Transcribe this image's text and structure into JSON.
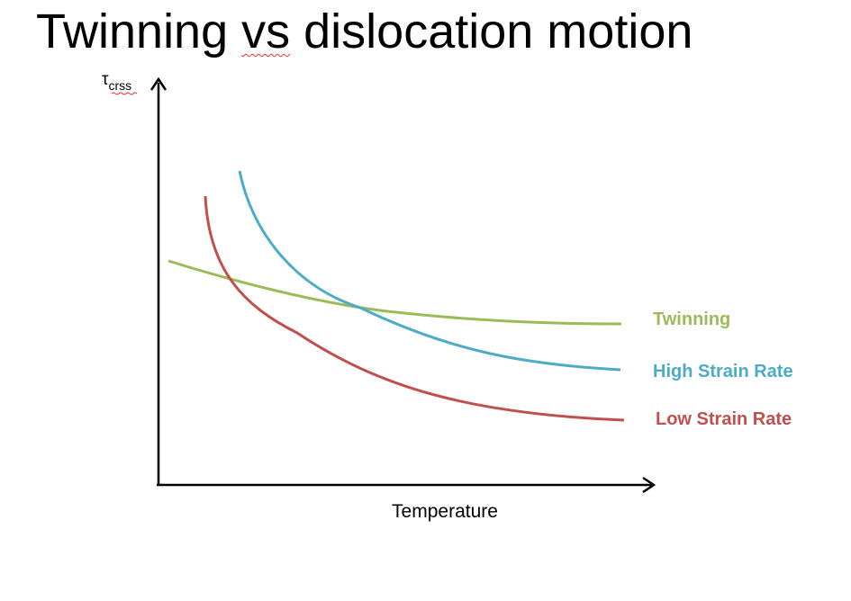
{
  "title": {
    "before": "Twinning ",
    "underlined": "vs",
    "after": " dislocation motion"
  },
  "y_axis": {
    "symbol": "τ",
    "subscript": "crss"
  },
  "x_axis": {
    "label": "Temperature"
  },
  "colors": {
    "twinning": "#9bbb59",
    "high_strain_rate": "#4bacc6",
    "low_strain_rate": "#c0504d",
    "axis": "#000000",
    "spellcheck": "#e0302a"
  },
  "chart_data": {
    "type": "line",
    "xlabel": "Temperature",
    "ylabel": "τcrss",
    "series": [
      {
        "name": "Twinning",
        "color": "#9bbb59"
      },
      {
        "name": "High Strain Rate",
        "color": "#4bacc6"
      },
      {
        "name": "Low Strain Rate",
        "color": "#c0504d"
      }
    ]
  }
}
